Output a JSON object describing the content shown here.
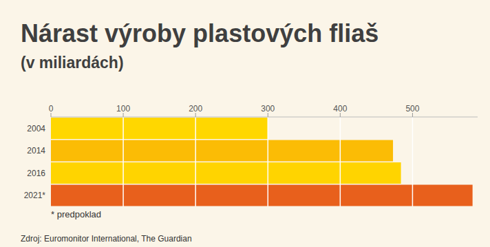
{
  "chart_data": {
    "type": "bar",
    "title": "Nárast výroby plastových fliaš",
    "subtitle": "(v miliardách)",
    "orientation": "horizontal",
    "categories": [
      "2004",
      "2014",
      "2016",
      "2021*"
    ],
    "values": [
      300,
      473,
      484,
      583
    ],
    "colors": [
      "#ffd700",
      "#fbbc05",
      "#ffd400",
      "#e8601c"
    ],
    "xlim": [
      0,
      590
    ],
    "xticks": [
      0,
      100,
      200,
      300,
      400,
      500
    ],
    "grid": true,
    "annotations": [
      "* predpoklad"
    ],
    "source": "Zdroj: Euromonitor International, The Guardian"
  }
}
